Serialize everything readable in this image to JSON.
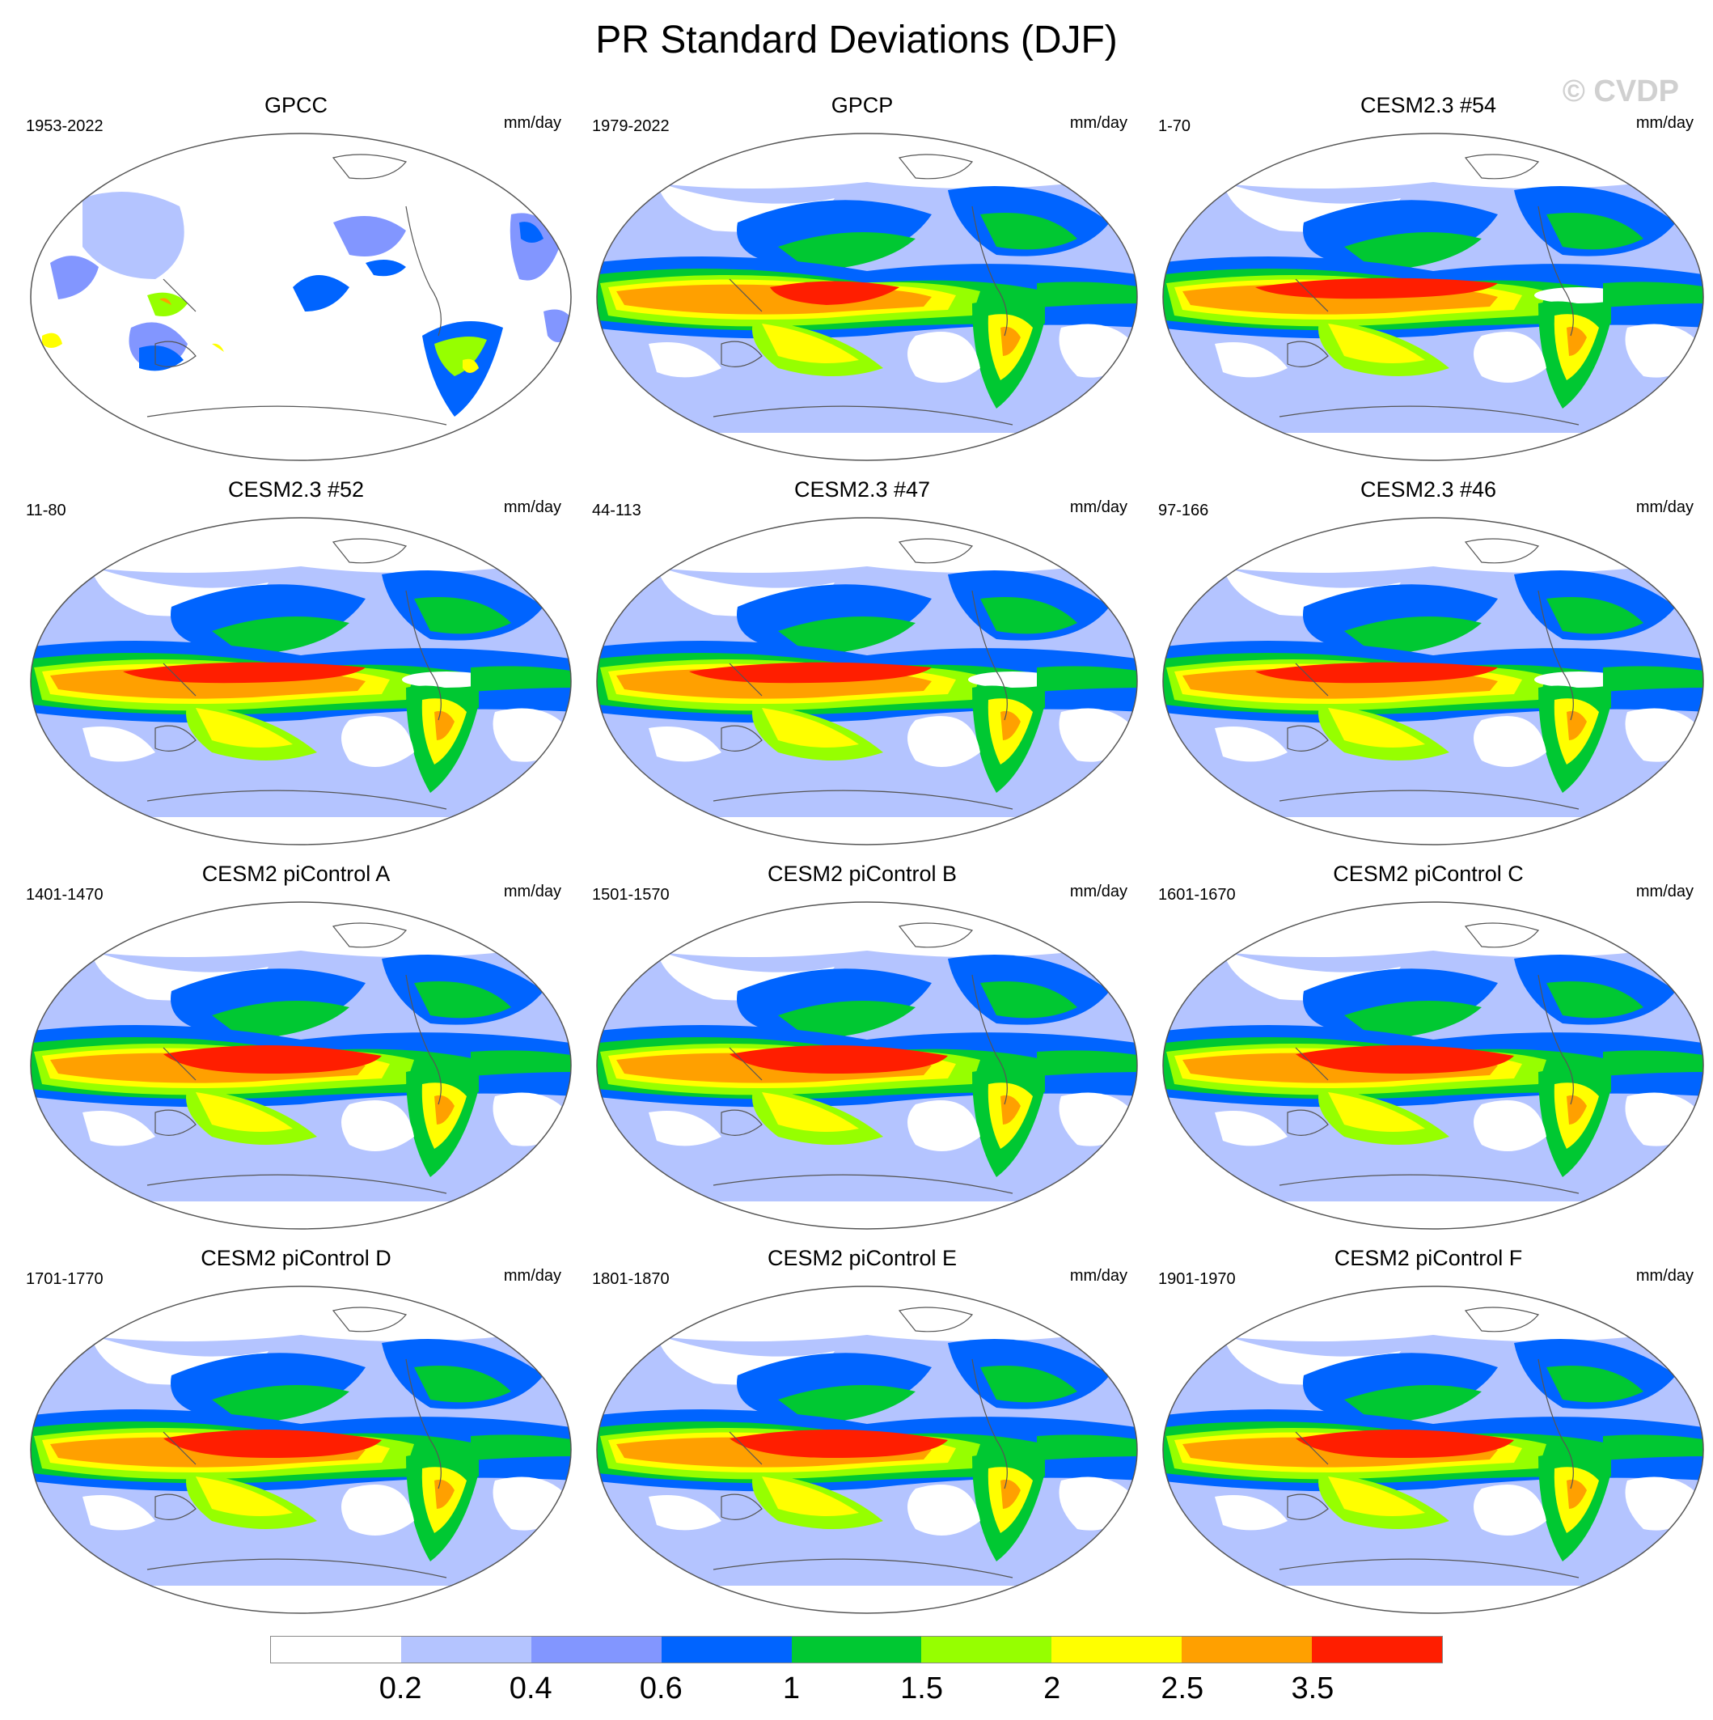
{
  "title": "PR Standard Deviations (DJF)",
  "watermark": "© CVDP",
  "units": "mm/day",
  "panels": [
    {
      "title": "GPCC",
      "period": "1953-2022",
      "style": "land_only"
    },
    {
      "title": "GPCP",
      "period": "1979-2022",
      "style": "obs"
    },
    {
      "title": "CESM2.3 #54",
      "period": "1-70",
      "style": "model"
    },
    {
      "title": "CESM2.3 #52",
      "period": "11-80",
      "style": "model"
    },
    {
      "title": "CESM2.3 #47",
      "period": "44-113",
      "style": "model"
    },
    {
      "title": "CESM2.3 #46",
      "period": "97-166",
      "style": "model"
    },
    {
      "title": "CESM2 piControl A",
      "period": "1401-1470",
      "style": "picontrol"
    },
    {
      "title": "CESM2 piControl B",
      "period": "1501-1570",
      "style": "picontrol"
    },
    {
      "title": "CESM2 piControl C",
      "period": "1601-1670",
      "style": "picontrol"
    },
    {
      "title": "CESM2 piControl D",
      "period": "1701-1770",
      "style": "picontrol"
    },
    {
      "title": "CESM2 piControl E",
      "period": "1801-1870",
      "style": "picontrol"
    },
    {
      "title": "CESM2 piControl F",
      "period": "1901-1970",
      "style": "picontrol"
    }
  ],
  "colorbar": {
    "levels": [
      "0.2",
      "0.4",
      "0.6",
      "1",
      "1.5",
      "2",
      "2.5",
      "3.5"
    ],
    "colors": [
      "#ffffff",
      "#b4c4ff",
      "#8296ff",
      "#0064ff",
      "#00c832",
      "#96ff00",
      "#ffff00",
      "#ffa000",
      "#ff1e00"
    ]
  }
}
